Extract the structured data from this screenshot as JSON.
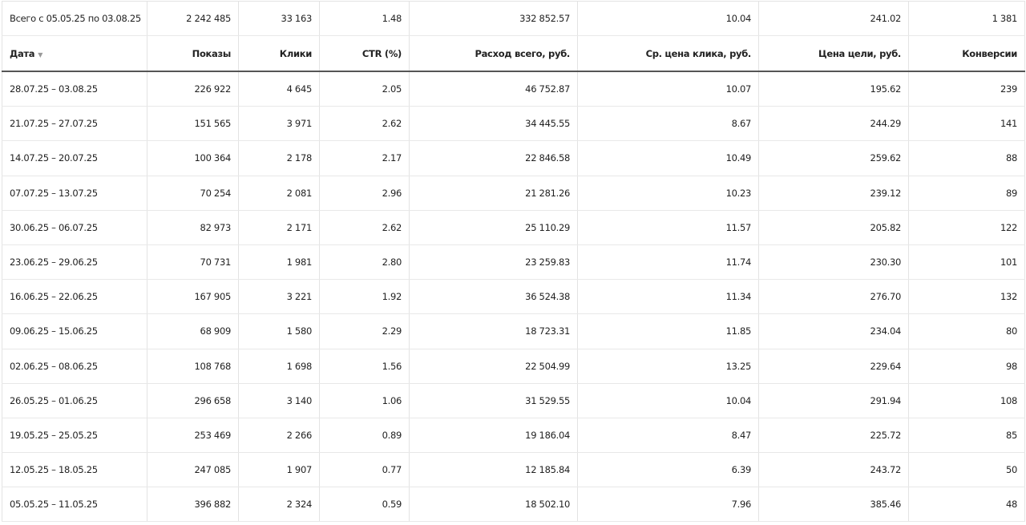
{
  "table": {
    "summary": [
      "Всего с 05.05.25 по 03.08.25",
      "2 242 485",
      "33 163",
      "1.48",
      "332 852.57",
      "10.04",
      "241.02",
      "1 381"
    ],
    "columns": [
      "Дата",
      "Показы",
      "Клики",
      "CTR (%)",
      "Расход всего, руб.",
      "Ср. цена клика, руб.",
      "Цена цели, руб.",
      "Конверсии"
    ],
    "rows": [
      [
        "28.07.25 – 03.08.25",
        "226 922",
        "4 645",
        "2.05",
        "46 752.87",
        "10.07",
        "195.62",
        "239"
      ],
      [
        "21.07.25 – 27.07.25",
        "151 565",
        "3 971",
        "2.62",
        "34 445.55",
        "8.67",
        "244.29",
        "141"
      ],
      [
        "14.07.25 – 20.07.25",
        "100 364",
        "2 178",
        "2.17",
        "22 846.58",
        "10.49",
        "259.62",
        "88"
      ],
      [
        "07.07.25 – 13.07.25",
        "70 254",
        "2 081",
        "2.96",
        "21 281.26",
        "10.23",
        "239.12",
        "89"
      ],
      [
        "30.06.25 – 06.07.25",
        "82 973",
        "2 171",
        "2.62",
        "25 110.29",
        "11.57",
        "205.82",
        "122"
      ],
      [
        "23.06.25 – 29.06.25",
        "70 731",
        "1 981",
        "2.80",
        "23 259.83",
        "11.74",
        "230.30",
        "101"
      ],
      [
        "16.06.25 – 22.06.25",
        "167 905",
        "3 221",
        "1.92",
        "36 524.38",
        "11.34",
        "276.70",
        "132"
      ],
      [
        "09.06.25 – 15.06.25",
        "68 909",
        "1 580",
        "2.29",
        "18 723.31",
        "11.85",
        "234.04",
        "80"
      ],
      [
        "02.06.25 – 08.06.25",
        "108 768",
        "1 698",
        "1.56",
        "22 504.99",
        "13.25",
        "229.64",
        "98"
      ],
      [
        "26.05.25 – 01.06.25",
        "296 658",
        "3 140",
        "1.06",
        "31 529.55",
        "10.04",
        "291.94",
        "108"
      ],
      [
        "19.05.25 – 25.05.25",
        "253 469",
        "2 266",
        "0.89",
        "19 186.04",
        "8.47",
        "225.72",
        "85"
      ],
      [
        "12.05.25 – 18.05.25",
        "247 085",
        "1 907",
        "0.77",
        "12 185.84",
        "6.39",
        "243.72",
        "50"
      ],
      [
        "05.05.25 – 11.05.25",
        "396 882",
        "2 324",
        "0.59",
        "18 502.10",
        "7.96",
        "385.46",
        "48"
      ]
    ]
  }
}
